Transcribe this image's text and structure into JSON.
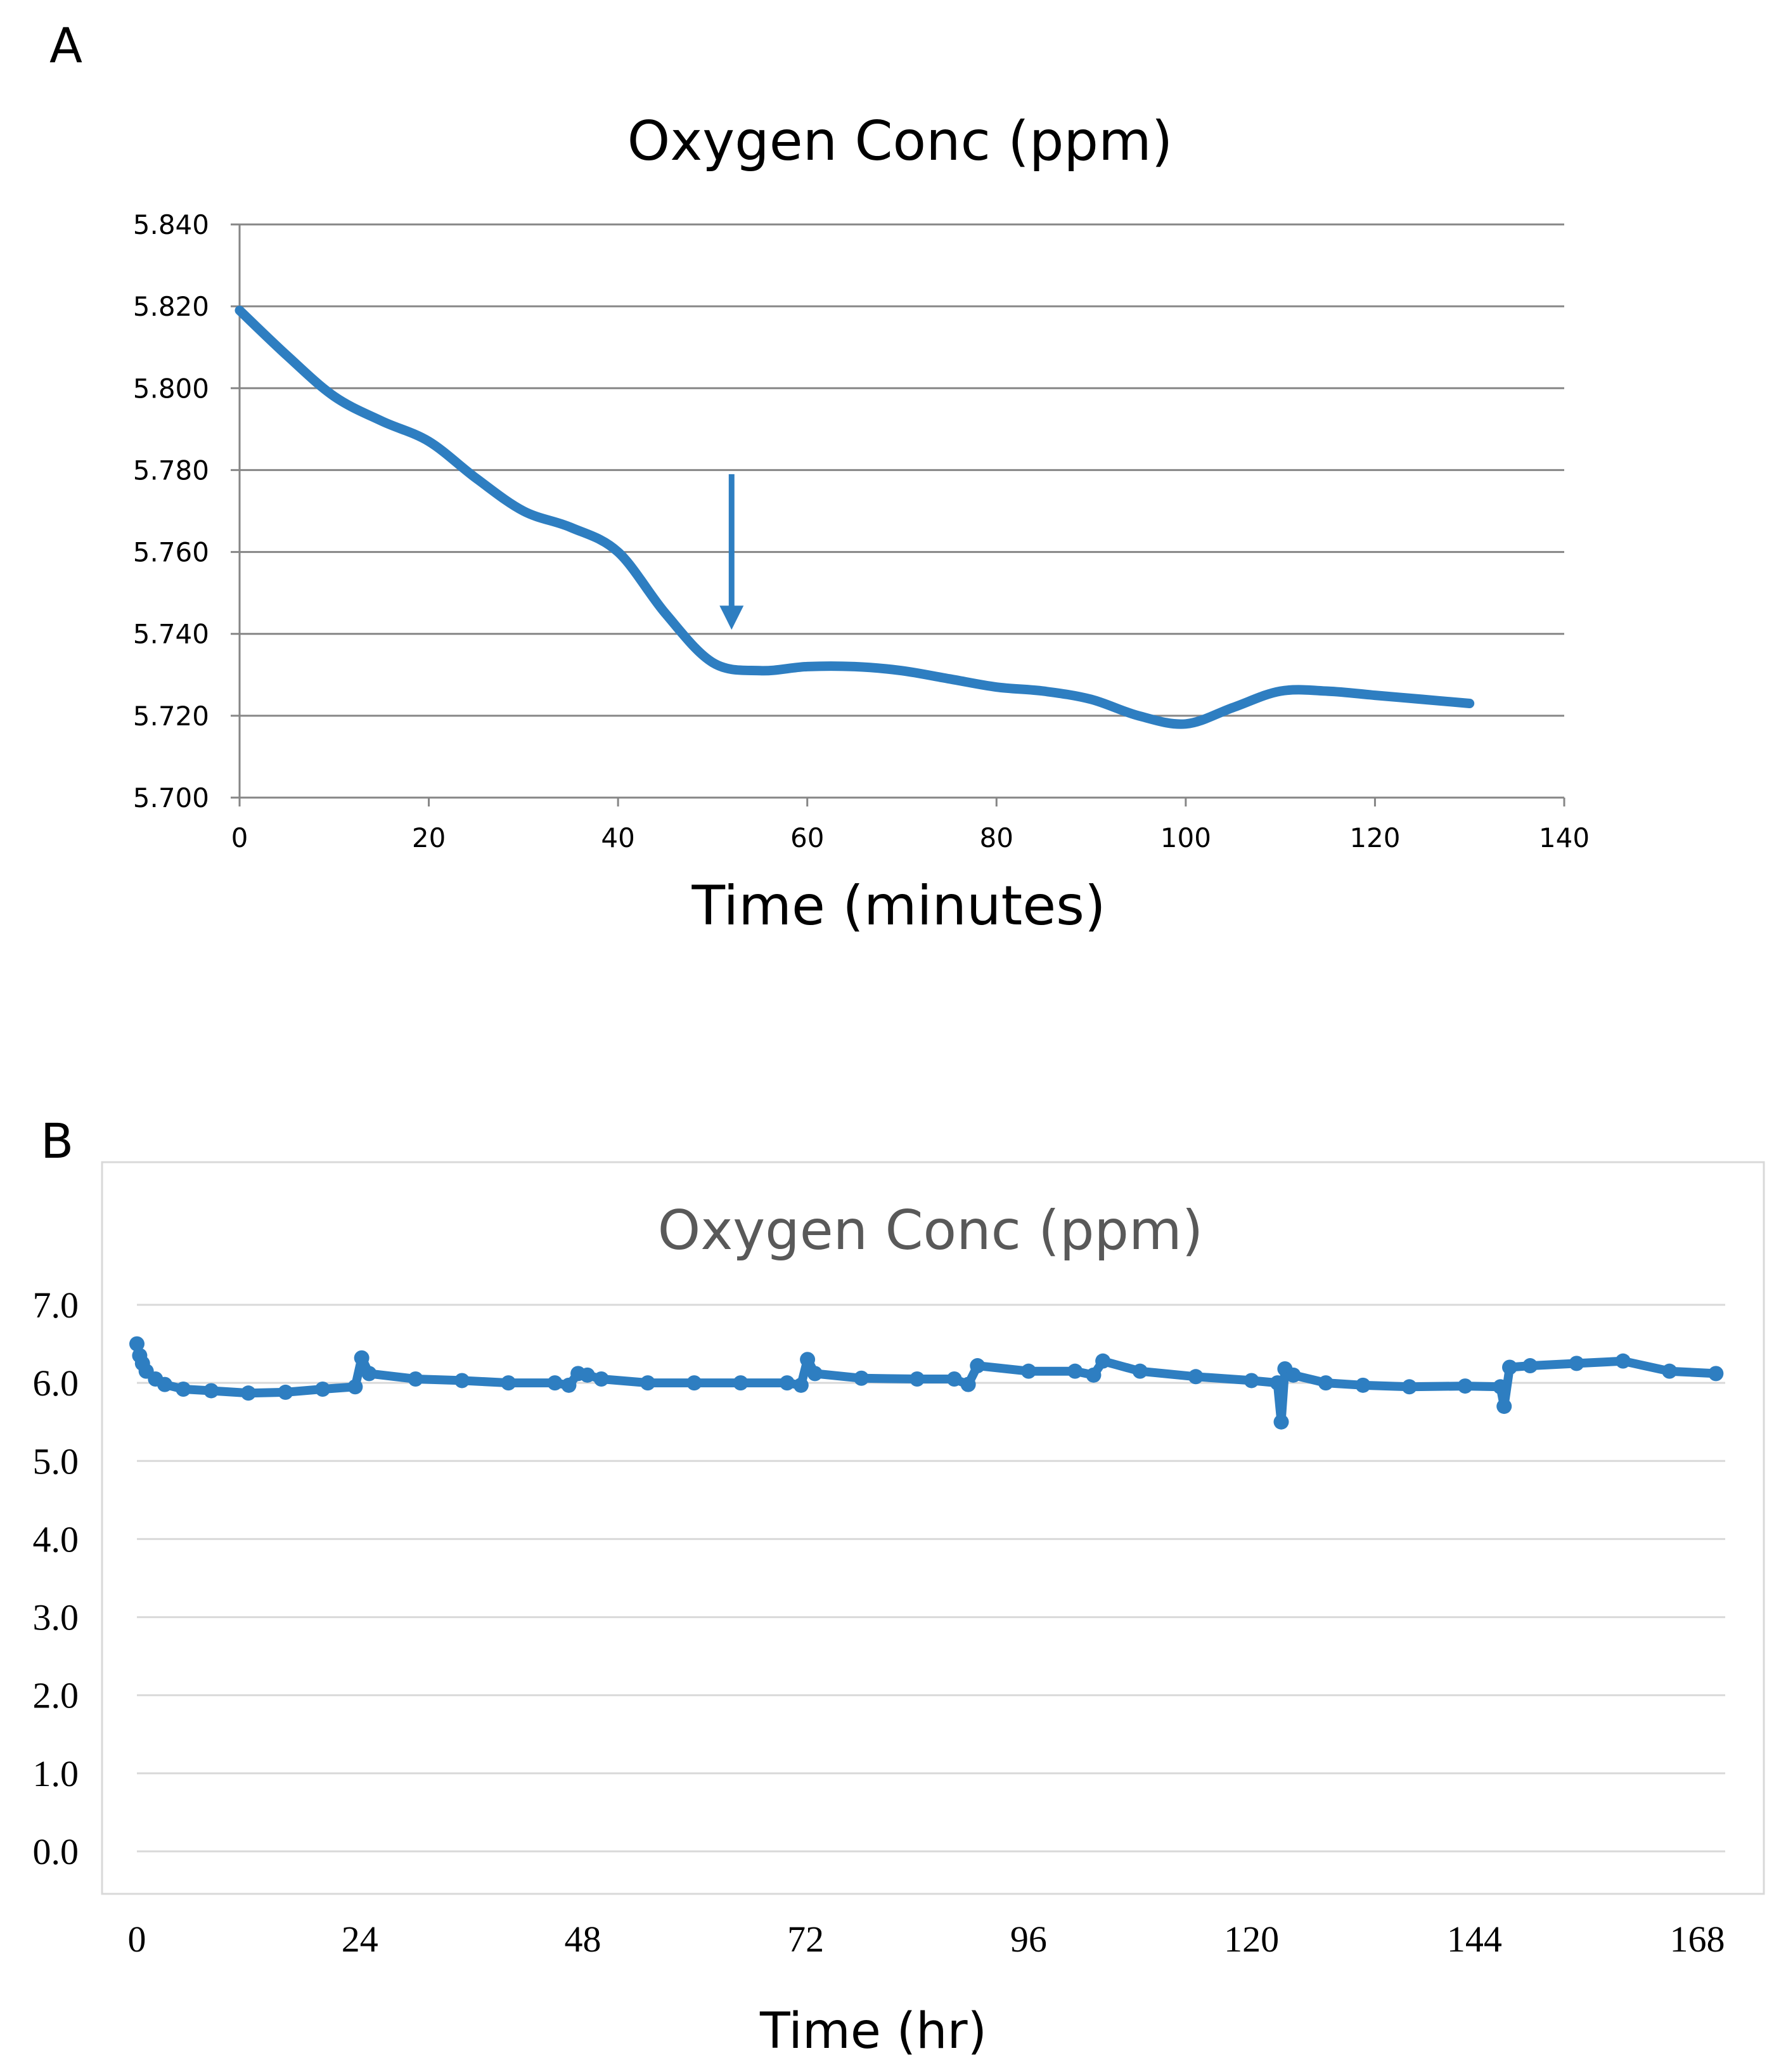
{
  "figure": {
    "panel_a_letter": "A",
    "panel_b_letter": "B"
  },
  "chart_data": [
    {
      "type": "line",
      "panel": "A",
      "title": "Oxygen Conc (ppm)",
      "xlabel": "Time (minutes)",
      "ylabel": "",
      "xlim": [
        0,
        140
      ],
      "ylim": [
        5.7,
        5.84
      ],
      "x_ticks": [
        "0",
        "20",
        "40",
        "60",
        "80",
        "100",
        "120",
        "140"
      ],
      "y_ticks": [
        "5.700",
        "5.720",
        "5.740",
        "5.760",
        "5.780",
        "5.800",
        "5.820",
        "5.840"
      ],
      "grid": true,
      "legend": "none",
      "color": "#2e7ec1",
      "series": [
        {
          "name": "Oxygen Conc (ppm)",
          "x": [
            0,
            5,
            10,
            15,
            20,
            25,
            30,
            35,
            40,
            45,
            50,
            55,
            60,
            65,
            70,
            75,
            80,
            85,
            90,
            95,
            100,
            105,
            110,
            115,
            120,
            125,
            130
          ],
          "y": [
            5.819,
            5.808,
            5.798,
            5.792,
            5.787,
            5.778,
            5.77,
            5.766,
            5.76,
            5.745,
            5.733,
            5.731,
            5.732,
            5.732,
            5.731,
            5.729,
            5.727,
            5.726,
            5.724,
            5.72,
            5.718,
            5.722,
            5.726,
            5.726,
            5.725,
            5.724,
            5.723
          ]
        }
      ],
      "annotations": [
        {
          "type": "arrow",
          "x": 52,
          "y_from": 5.779,
          "y_to": 5.741
        }
      ]
    },
    {
      "type": "scatter",
      "panel": "B",
      "title": "Oxygen Conc (ppm)",
      "xlabel": "Time (hr)",
      "ylabel": "",
      "xlim": [
        0,
        171
      ],
      "ylim": [
        0,
        7
      ],
      "x_ticks": [
        "0",
        "24",
        "48",
        "72",
        "96",
        "120",
        "144",
        "168"
      ],
      "y_ticks": [
        "0.0",
        "1.0",
        "2.0",
        "3.0",
        "4.0",
        "5.0",
        "6.0",
        "7.0"
      ],
      "grid": true,
      "legend": "none",
      "color": "#2e7ec1",
      "series": [
        {
          "name": "Oxygen Conc (ppm)",
          "x": [
            0,
            0.3,
            0.6,
            1,
            2,
            3,
            5,
            8,
            12,
            16,
            20,
            23.5,
            24.2,
            25,
            30,
            35,
            40,
            45,
            46.5,
            47.5,
            48.5,
            50,
            55,
            60,
            65,
            70,
            71.5,
            72.2,
            73,
            78,
            84,
            88,
            89.5,
            90.5,
            96,
            101,
            103,
            104,
            108,
            114,
            120,
            122.8,
            123.2,
            123.6,
            124.5,
            128,
            132,
            137,
            143,
            146.8,
            147.2,
            147.8,
            150,
            155,
            160,
            165,
            170
          ],
          "y": [
            6.5,
            6.35,
            6.25,
            6.15,
            6.05,
            5.98,
            5.92,
            5.9,
            5.87,
            5.88,
            5.92,
            5.95,
            6.32,
            6.12,
            6.05,
            6.03,
            6.0,
            6.0,
            5.97,
            6.12,
            6.1,
            6.05,
            6.0,
            6.0,
            6.0,
            6.0,
            5.97,
            6.3,
            6.12,
            6.06,
            6.05,
            6.05,
            5.98,
            6.22,
            6.15,
            6.15,
            6.1,
            6.28,
            6.15,
            6.08,
            6.03,
            6.0,
            5.5,
            6.18,
            6.1,
            6.0,
            5.97,
            5.95,
            5.96,
            5.95,
            5.7,
            6.2,
            6.22,
            6.25,
            6.28,
            6.15,
            6.12
          ]
        }
      ]
    }
  ]
}
